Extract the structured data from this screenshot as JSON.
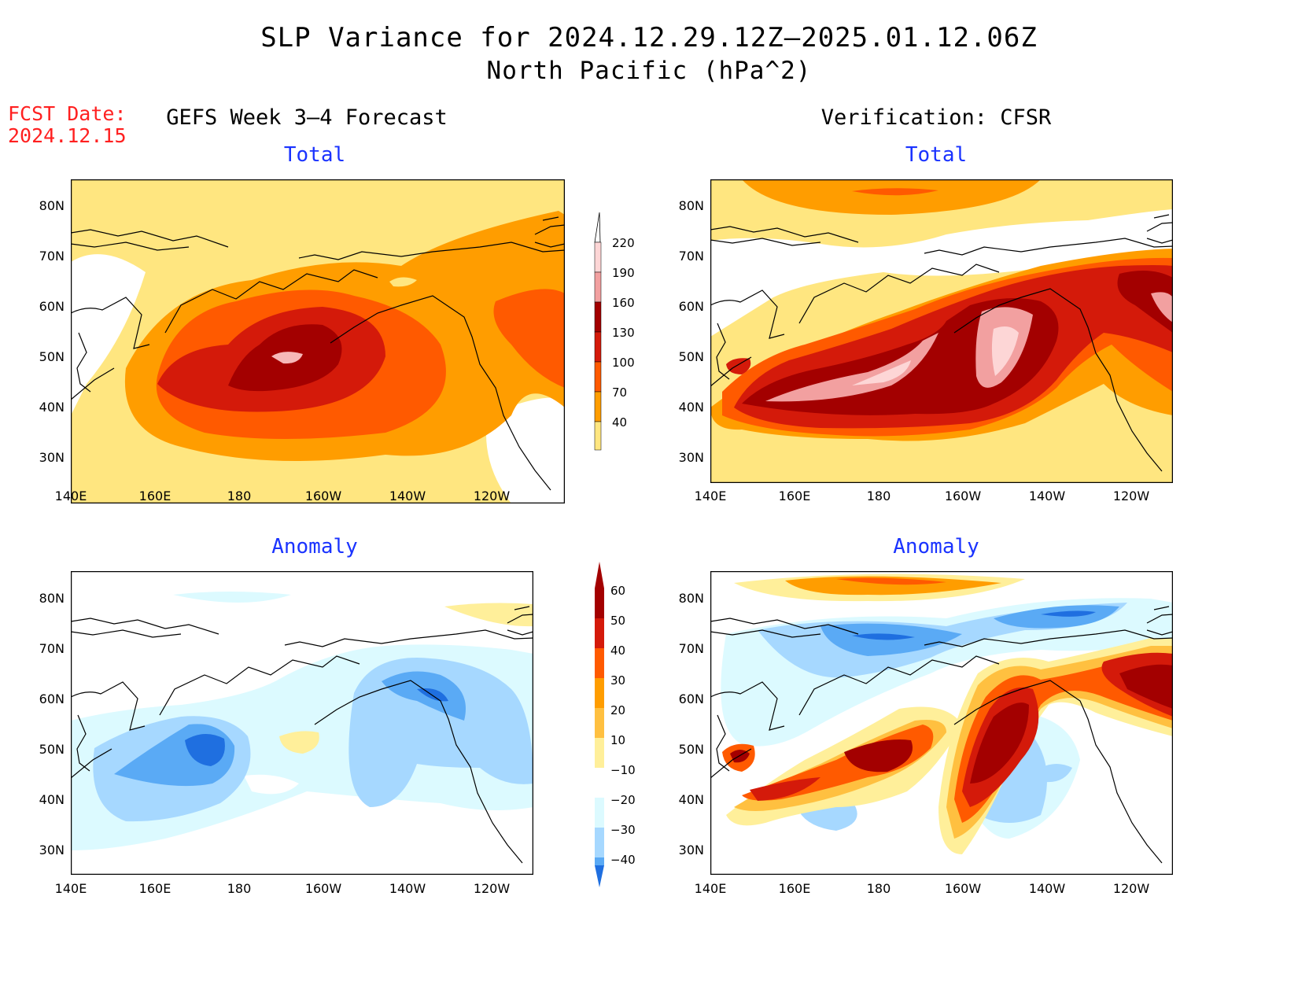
{
  "title": {
    "line1": "SLP Variance for 2024.12.29.12Z—2025.01.12.06Z",
    "line2": "North Pacific (hPa^2)"
  },
  "fcst": {
    "line1": "FCST Date:",
    "line2": "2024.12.15"
  },
  "columns": {
    "left": "GEFS Week 3—4 Forecast",
    "right": "Verification: CFSR"
  },
  "subtitles": {
    "total": "Total",
    "anomaly": "Anomaly"
  },
  "axes": {
    "lat_labels": [
      "80N",
      "70N",
      "60N",
      "50N",
      "40N",
      "30N"
    ],
    "lon_labels": [
      "140E",
      "160E",
      "180",
      "160W",
      "140W",
      "120W"
    ]
  },
  "colorbars": {
    "total": {
      "labels": [
        "220",
        "190",
        "160",
        "130",
        "100",
        "70",
        "40"
      ],
      "colors": [
        "#fdd6d6",
        "#f2a0a0",
        "#a30000",
        "#d41a0a",
        "#ff5a00",
        "#ff9d00",
        "#ffe680"
      ]
    },
    "anomaly": {
      "labels": [
        "60",
        "50",
        "40",
        "30",
        "20",
        "10",
        "−10",
        "−20",
        "−30",
        "−40"
      ],
      "colors": [
        "#a30000",
        "#d41a0a",
        "#ff5a00",
        "#ff9d00",
        "#ffc040",
        "#ffef9a",
        "#ffffff",
        "#dcfaff",
        "#a6d8ff",
        "#5aaaf5",
        "#1f6fe0"
      ]
    }
  },
  "palette": {
    "land_line": "#000000",
    "total_levels": [
      "#ffe680",
      "#ff9d00",
      "#ff5a00",
      "#d41a0a",
      "#a30000",
      "#f2a0a0",
      "#fdd6d6"
    ],
    "anom_pos": [
      "#ffef9a",
      "#ffc040",
      "#ff9d00",
      "#ff5a00",
      "#d41a0a",
      "#a30000"
    ],
    "anom_neg": [
      "#dcfaff",
      "#a6d8ff",
      "#5aaaf5",
      "#1f6fe0"
    ]
  }
}
